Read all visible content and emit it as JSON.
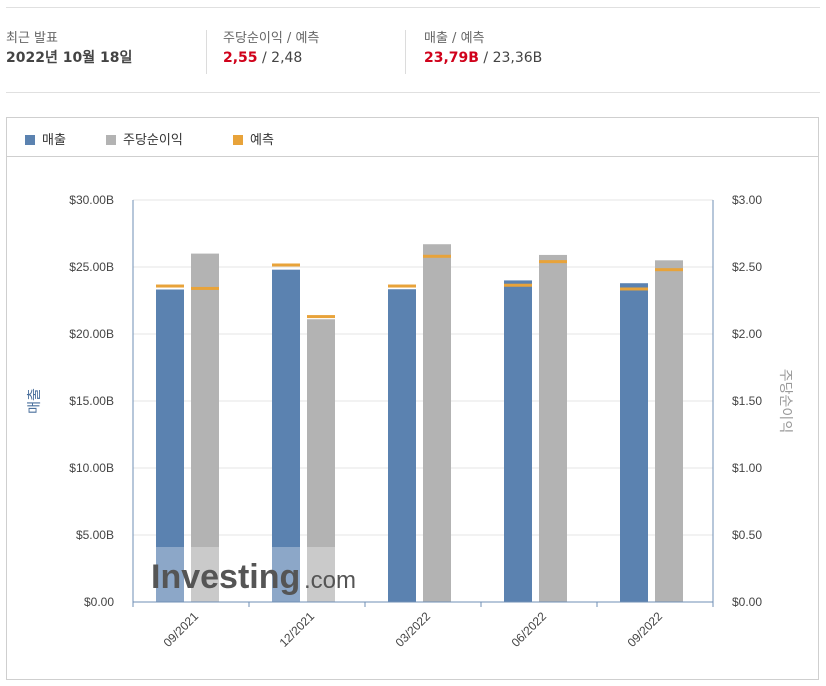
{
  "summary": {
    "latest": {
      "label": "최근 발표",
      "value": "2022년 10월 18일"
    },
    "eps": {
      "label": "주당순이익 / 예측",
      "actual": "2,55",
      "forecast": " / 2,48"
    },
    "revenue": {
      "label": "매출 / 예측",
      "actual": "23,79B",
      "forecast": " / 23,36B"
    }
  },
  "legend": [
    {
      "label": "매출",
      "color": "#5b82b0"
    },
    {
      "label": "주당순이익",
      "color": "#b3b3b3"
    },
    {
      "label": "예측",
      "color": "#e8a33a"
    }
  ],
  "watermark": {
    "brand": "Investing",
    "suffix": ".com"
  },
  "chart_data": {
    "type": "bar",
    "categories": [
      "09/2021",
      "12/2021",
      "03/2022",
      "06/2022",
      "09/2022"
    ],
    "series": [
      {
        "name": "매출",
        "axis": "left",
        "color": "#5b82b0",
        "values": [
          23.32,
          24.8,
          23.34,
          24.0,
          23.79
        ]
      },
      {
        "name": "주당순이익",
        "axis": "right",
        "color": "#b3b3b3",
        "values": [
          2.6,
          2.11,
          2.67,
          2.59,
          2.55
        ]
      }
    ],
    "forecasts": {
      "name": "예측",
      "color": "#e8a33a",
      "revenue": [
        23.58,
        25.15,
        23.58,
        23.64,
        23.36
      ],
      "eps": [
        2.34,
        2.13,
        2.58,
        2.54,
        2.48
      ]
    },
    "y_left": {
      "label": "매출",
      "range": [
        0,
        30
      ],
      "ticks": [
        "$0.00",
        "$5.00B",
        "$10.00B",
        "$15.00B",
        "$20.00B",
        "$25.00B",
        "$30.00B"
      ]
    },
    "y_right": {
      "label": "주당순이익",
      "range": [
        0,
        3
      ],
      "ticks": [
        "$0.00",
        "$0.50",
        "$1.00",
        "$1.50",
        "$2.00",
        "$2.50",
        "$3.00"
      ]
    },
    "grid": true
  }
}
